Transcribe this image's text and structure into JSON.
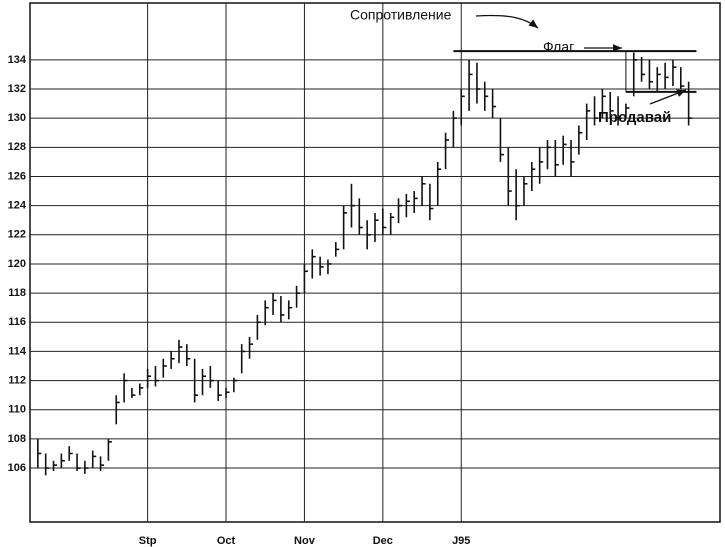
{
  "chart_data": {
    "type": "ohlc",
    "x": [
      0,
      1,
      2,
      3,
      4,
      5,
      6,
      7,
      8,
      9,
      10,
      11,
      12,
      13,
      14,
      15,
      16,
      17,
      18,
      19,
      20,
      21,
      22,
      23,
      24,
      25,
      26,
      27,
      28,
      29,
      30,
      31,
      32,
      33,
      34,
      35,
      36,
      37,
      38,
      39,
      40,
      41,
      42,
      43,
      44,
      45,
      46,
      47,
      48,
      49,
      50,
      51,
      52,
      53,
      54,
      55,
      56,
      57,
      58,
      59,
      60,
      61,
      62,
      63,
      64,
      65,
      66,
      67,
      68,
      69,
      70,
      71,
      72,
      73,
      74,
      75,
      76,
      77,
      78,
      79,
      80,
      81,
      82,
      83
    ],
    "high": [
      108,
      107,
      106.5,
      107,
      107.5,
      107,
      106.5,
      107.2,
      106.8,
      108,
      111,
      112.5,
      111.5,
      111.8,
      112.8,
      113,
      113.5,
      114,
      114.8,
      114.5,
      113.5,
      112.8,
      113,
      112,
      111.5,
      112.2,
      114.5,
      115,
      116.5,
      117.5,
      118,
      117.8,
      117.5,
      118.5,
      120,
      121,
      120.5,
      120.3,
      121.5,
      124,
      125.5,
      124.5,
      123,
      123.5,
      123.8,
      123.5,
      124.5,
      124.8,
      125,
      126,
      125.5,
      127,
      129,
      130.5,
      132,
      134,
      133.8,
      132.5,
      132,
      130,
      128,
      126.5,
      126,
      127,
      128,
      128.5,
      128.5,
      128.8,
      128.5,
      129.5,
      131,
      131.5,
      132,
      131.8,
      131.5,
      131,
      134.5,
      134.2,
      134,
      133.5,
      133.8,
      134,
      133.5,
      132.5
    ],
    "low": [
      106,
      105.5,
      105.8,
      106,
      106.5,
      105.8,
      105.6,
      106,
      105.8,
      106.5,
      109,
      110.5,
      110.8,
      111,
      111.5,
      111.6,
      112.2,
      112.8,
      113.2,
      113,
      110.5,
      111,
      111.5,
      110.6,
      110.8,
      111.2,
      112.5,
      113.5,
      114.8,
      115.8,
      116.5,
      116,
      116.2,
      117,
      118,
      119,
      119.2,
      119.3,
      120.5,
      121,
      122.5,
      122,
      121,
      121.5,
      122,
      122,
      122.8,
      123.2,
      123.5,
      124,
      123,
      124,
      126.5,
      128,
      129.5,
      130.5,
      131,
      130.5,
      130,
      127,
      124,
      123,
      124,
      125,
      125.5,
      126.5,
      126,
      126.8,
      126,
      127.5,
      128.5,
      129.5,
      130,
      130,
      129.5,
      130,
      131.5,
      132.5,
      132,
      131.8,
      132,
      132.2,
      132,
      129.5
    ],
    "close": [
      107,
      106,
      106.2,
      106.5,
      107,
      106,
      106,
      106.8,
      106.2,
      107.8,
      110.5,
      112,
      111,
      111.5,
      112.3,
      112,
      113,
      113.5,
      114.3,
      113.5,
      111,
      112.3,
      112,
      111,
      111.2,
      112,
      114,
      114.5,
      116,
      117,
      117.5,
      116.5,
      117,
      118,
      119.5,
      120.5,
      119.8,
      120,
      121,
      123.5,
      124,
      122.5,
      122,
      123,
      122.5,
      123.2,
      124,
      124.3,
      124.5,
      125.5,
      123.8,
      126.5,
      128.5,
      130,
      131.5,
      133,
      132,
      131.5,
      130.8,
      127.5,
      125,
      124,
      125.5,
      126.5,
      127,
      128,
      126.8,
      128.2,
      127,
      129,
      130.5,
      130,
      131.5,
      130.5,
      130,
      130.7,
      134,
      133,
      132.5,
      133,
      132.8,
      133.5,
      132.2,
      130
    ],
    "color": "#111111",
    "xlim": [
      -1,
      87
    ],
    "xticks": [
      {
        "value": 14,
        "label": "Stp"
      },
      {
        "value": 24,
        "label": "Oct"
      },
      {
        "value": 34,
        "label": "Nov"
      },
      {
        "value": 44,
        "label": "Dec"
      },
      {
        "value": 54,
        "label": "J95"
      }
    ],
    "ylim": [
      102.3,
      137.9
    ],
    "yticks": [
      106,
      108,
      110,
      112,
      114,
      116,
      118,
      120,
      122,
      124,
      126,
      128,
      130,
      132,
      134
    ],
    "grid": true,
    "resistance": {
      "label": "Сопротивление",
      "value": 134.6,
      "from": 53,
      "to": 84
    },
    "flag": {
      "label": "Флаг",
      "upper": 134.6,
      "lower": 131.8,
      "from": 75,
      "to": 84
    },
    "sell_label": "Продавай"
  }
}
